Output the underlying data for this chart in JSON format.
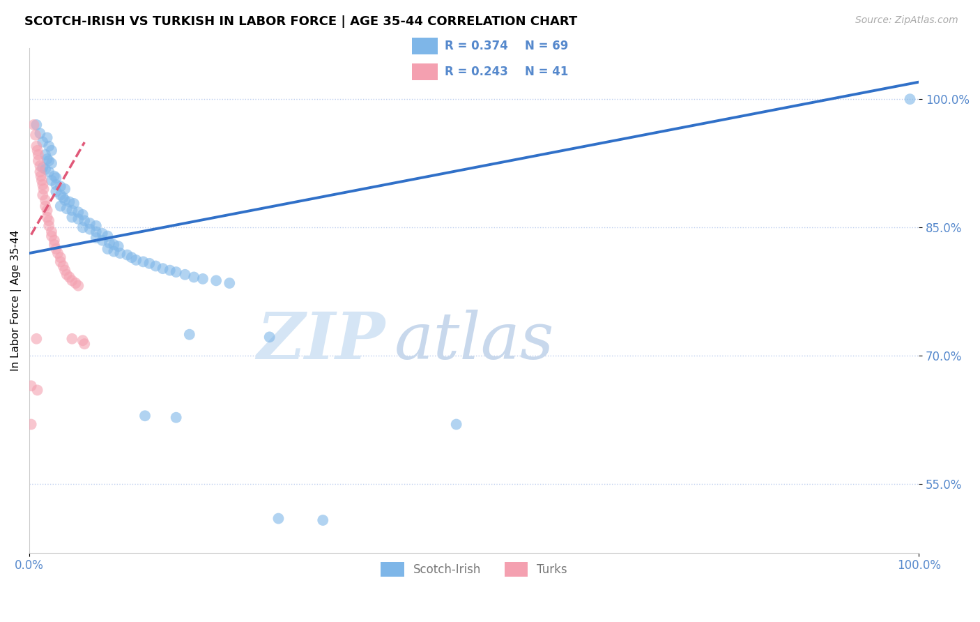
{
  "title": "SCOTCH-IRISH VS TURKISH IN LABOR FORCE | AGE 35-44 CORRELATION CHART",
  "source": "Source: ZipAtlas.com",
  "ylabel": "In Labor Force | Age 35-44",
  "xlim": [
    0.0,
    1.0
  ],
  "ylim": [
    0.47,
    1.06
  ],
  "xticks": [
    0.0,
    1.0
  ],
  "xticklabels": [
    "0.0%",
    "100.0%"
  ],
  "yticks": [
    0.55,
    0.7,
    0.85,
    1.0
  ],
  "yticklabels": [
    "55.0%",
    "70.0%",
    "85.0%",
    "100.0%"
  ],
  "blue_R": 0.374,
  "blue_N": 69,
  "pink_R": 0.243,
  "pink_N": 41,
  "blue_color": "#7EB6E8",
  "pink_color": "#F4A0B0",
  "blue_line_color": "#3070C8",
  "pink_line_color": "#E05878",
  "blue_scatter": [
    [
      0.008,
      0.97
    ],
    [
      0.012,
      0.96
    ],
    [
      0.015,
      0.95
    ],
    [
      0.02,
      0.955
    ],
    [
      0.022,
      0.945
    ],
    [
      0.025,
      0.94
    ],
    [
      0.018,
      0.935
    ],
    [
      0.02,
      0.93
    ],
    [
      0.022,
      0.928
    ],
    [
      0.025,
      0.925
    ],
    [
      0.015,
      0.92
    ],
    [
      0.018,
      0.918
    ],
    [
      0.022,
      0.915
    ],
    [
      0.028,
      0.91
    ],
    [
      0.03,
      0.908
    ],
    [
      0.025,
      0.905
    ],
    [
      0.03,
      0.9
    ],
    [
      0.035,
      0.898
    ],
    [
      0.04,
      0.895
    ],
    [
      0.03,
      0.892
    ],
    [
      0.035,
      0.888
    ],
    [
      0.038,
      0.885
    ],
    [
      0.04,
      0.882
    ],
    [
      0.045,
      0.88
    ],
    [
      0.05,
      0.878
    ],
    [
      0.035,
      0.875
    ],
    [
      0.042,
      0.872
    ],
    [
      0.048,
      0.87
    ],
    [
      0.055,
      0.868
    ],
    [
      0.06,
      0.865
    ],
    [
      0.048,
      0.862
    ],
    [
      0.055,
      0.86
    ],
    [
      0.062,
      0.858
    ],
    [
      0.068,
      0.855
    ],
    [
      0.075,
      0.852
    ],
    [
      0.06,
      0.85
    ],
    [
      0.068,
      0.848
    ],
    [
      0.075,
      0.845
    ],
    [
      0.082,
      0.843
    ],
    [
      0.088,
      0.84
    ],
    [
      0.075,
      0.838
    ],
    [
      0.082,
      0.835
    ],
    [
      0.09,
      0.832
    ],
    [
      0.095,
      0.83
    ],
    [
      0.1,
      0.828
    ],
    [
      0.088,
      0.825
    ],
    [
      0.095,
      0.822
    ],
    [
      0.102,
      0.82
    ],
    [
      0.11,
      0.818
    ],
    [
      0.115,
      0.815
    ],
    [
      0.12,
      0.812
    ],
    [
      0.128,
      0.81
    ],
    [
      0.135,
      0.808
    ],
    [
      0.142,
      0.805
    ],
    [
      0.15,
      0.802
    ],
    [
      0.158,
      0.8
    ],
    [
      0.165,
      0.798
    ],
    [
      0.175,
      0.795
    ],
    [
      0.185,
      0.792
    ],
    [
      0.195,
      0.79
    ],
    [
      0.21,
      0.788
    ],
    [
      0.225,
      0.785
    ],
    [
      0.18,
      0.725
    ],
    [
      0.27,
      0.722
    ],
    [
      0.13,
      0.63
    ],
    [
      0.165,
      0.628
    ],
    [
      0.48,
      0.62
    ],
    [
      0.28,
      0.51
    ],
    [
      0.33,
      0.508
    ],
    [
      0.99,
      1.0
    ]
  ],
  "pink_scatter": [
    [
      0.005,
      0.97
    ],
    [
      0.007,
      0.958
    ],
    [
      0.008,
      0.945
    ],
    [
      0.009,
      0.94
    ],
    [
      0.01,
      0.935
    ],
    [
      0.01,
      0.928
    ],
    [
      0.012,
      0.922
    ],
    [
      0.012,
      0.915
    ],
    [
      0.013,
      0.91
    ],
    [
      0.014,
      0.905
    ],
    [
      0.015,
      0.9
    ],
    [
      0.016,
      0.895
    ],
    [
      0.015,
      0.888
    ],
    [
      0.018,
      0.882
    ],
    [
      0.018,
      0.875
    ],
    [
      0.02,
      0.87
    ],
    [
      0.02,
      0.862
    ],
    [
      0.022,
      0.858
    ],
    [
      0.022,
      0.852
    ],
    [
      0.025,
      0.845
    ],
    [
      0.025,
      0.84
    ],
    [
      0.028,
      0.835
    ],
    [
      0.028,
      0.83
    ],
    [
      0.03,
      0.825
    ],
    [
      0.032,
      0.82
    ],
    [
      0.035,
      0.815
    ],
    [
      0.035,
      0.81
    ],
    [
      0.038,
      0.805
    ],
    [
      0.04,
      0.8
    ],
    [
      0.042,
      0.795
    ],
    [
      0.045,
      0.792
    ],
    [
      0.048,
      0.788
    ],
    [
      0.052,
      0.785
    ],
    [
      0.055,
      0.782
    ],
    [
      0.008,
      0.72
    ],
    [
      0.06,
      0.718
    ],
    [
      0.062,
      0.714
    ],
    [
      0.002,
      0.665
    ],
    [
      0.009,
      0.66
    ],
    [
      0.048,
      0.72
    ],
    [
      0.002,
      0.62
    ]
  ],
  "watermark_zip": "ZIP",
  "watermark_atlas": "atlas",
  "title_fontsize": 13,
  "tick_color": "#5588CC",
  "grid_color": "#BBCCEE"
}
